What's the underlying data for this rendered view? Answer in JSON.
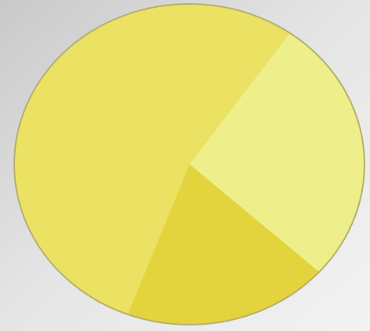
{
  "chart_data": {
    "type": "pie",
    "values": [
      27,
      19,
      54
    ],
    "colors": [
      "#eeee8a",
      "#e3d43e",
      "#ebe163"
    ],
    "start_angle": 35,
    "border_color": "#b8b070"
  }
}
